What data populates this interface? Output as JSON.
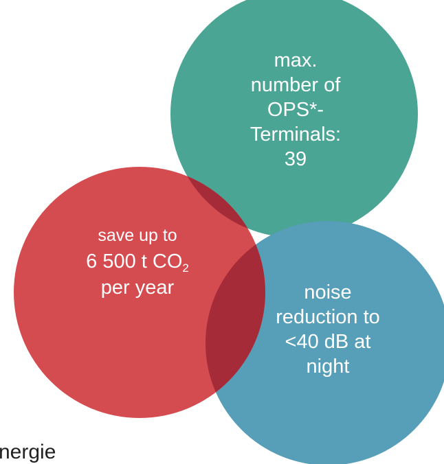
{
  "diagram": {
    "circles": [
      {
        "id": "ops-terminals",
        "color": "#4ba595",
        "lines": [
          "max.",
          "number of",
          "OPS*-",
          "Terminals:",
          "39"
        ]
      },
      {
        "id": "co2",
        "color": "#d44c4f",
        "lines": [
          "save up to"
        ],
        "co2_main": "6 500 t CO",
        "co2_sub": "2",
        "co2_tail": "per year"
      },
      {
        "id": "noise",
        "color": "#579eb8",
        "lines": [
          "noise",
          "reduction to",
          "<40 dB at",
          "night"
        ]
      }
    ],
    "overlap_color": "#a52b38"
  },
  "footer_fragment": "nergie"
}
